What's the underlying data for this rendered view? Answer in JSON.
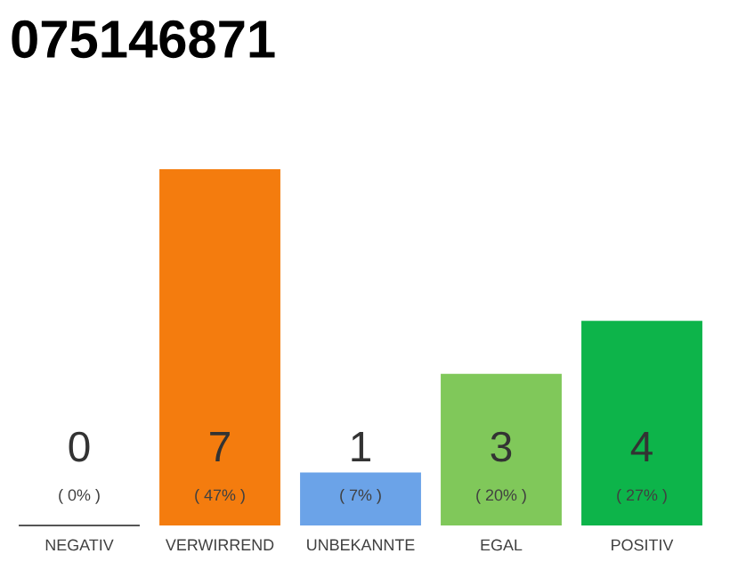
{
  "chart_data": {
    "type": "bar",
    "title": "075146871",
    "categories": [
      "NEGATIV",
      "VERWIRREND",
      "UNBEKANNTE",
      "EGAL",
      "POSITIV"
    ],
    "values": [
      0,
      47,
      7,
      20,
      27
    ],
    "colors": [
      "#555555",
      "#f47c0e",
      "#6ba3e8",
      "#80c85a",
      "#0db44a"
    ],
    "value_labels": [
      "( 0% )",
      "( 47% )",
      "( 7% )",
      "( 20% )",
      "( 27% )"
    ],
    "annotations": [
      "0",
      "7",
      "1",
      "3",
      "4"
    ]
  }
}
